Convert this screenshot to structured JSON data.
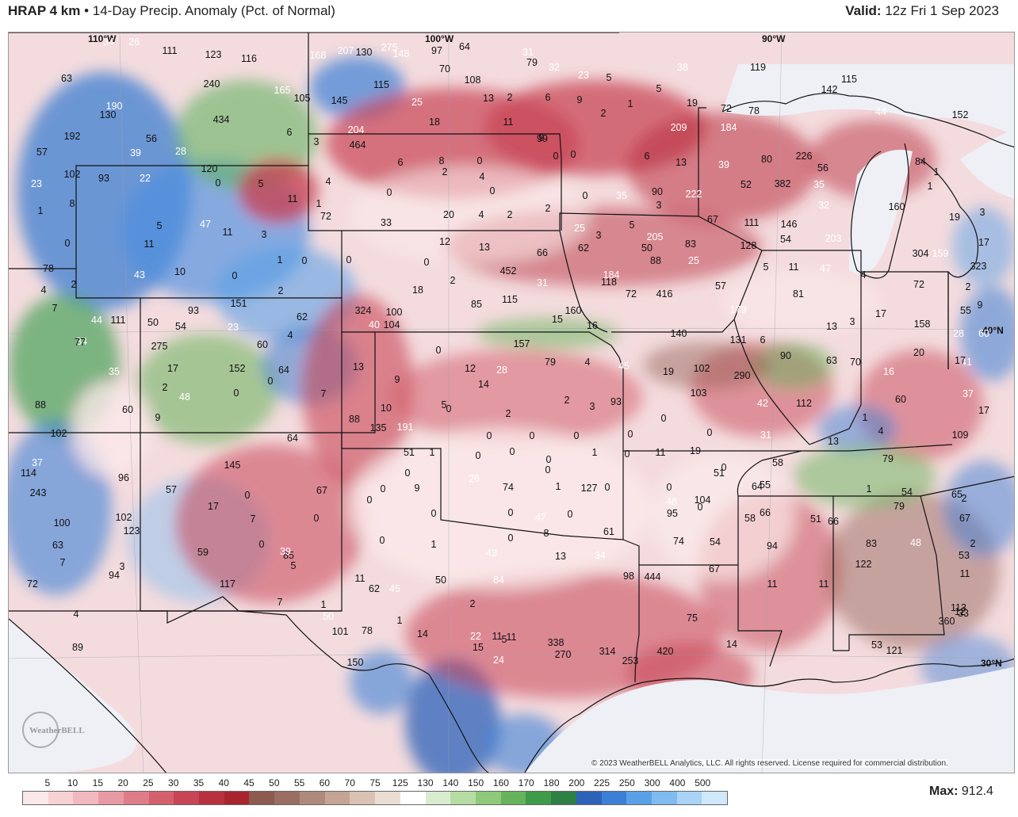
{
  "header": {
    "model": "HRAP 4 km",
    "bullet": "•",
    "product": "14-Day Precip. Anomaly (Pct. of Normal)",
    "valid_label": "Valid:",
    "valid_time": "12z Fri 1 Sep 2023"
  },
  "map": {
    "lon_labels": [
      "110°W",
      "100°W",
      "90°W"
    ],
    "lat_labels": [
      "40°N",
      "30°N"
    ],
    "logo_text": "WeatherBELL",
    "copyright": "© 2023 WeatherBELL Analytics, LLC. All rights reserved. License required for commercial distribution."
  },
  "station_values": [
    [
      "34",
      false
    ],
    [
      "26",
      false
    ],
    [
      "111",
      true
    ],
    [
      "123",
      true
    ],
    [
      "116",
      true
    ],
    [
      "168",
      false
    ],
    [
      "207",
      false
    ],
    [
      "130",
      true
    ],
    [
      "275",
      false
    ],
    [
      "148",
      false
    ],
    [
      "97",
      true
    ],
    [
      "64",
      true
    ],
    [
      "31",
      false
    ],
    [
      "63",
      true
    ],
    [
      "240",
      true
    ],
    [
      "165",
      false
    ],
    [
      "105",
      true
    ],
    [
      "145",
      true
    ],
    [
      "115",
      true
    ],
    [
      "70",
      true
    ],
    [
      "108",
      true
    ],
    [
      "79",
      true
    ],
    [
      "32",
      false
    ],
    [
      "23",
      false
    ],
    [
      "5",
      true
    ],
    [
      "38",
      false
    ],
    [
      "119",
      true
    ],
    [
      "115",
      true
    ],
    [
      "142",
      true
    ],
    [
      "190",
      false
    ],
    [
      "130",
      true
    ],
    [
      "434",
      true
    ],
    [
      "25",
      false
    ],
    [
      "13",
      true
    ],
    [
      "2",
      true
    ],
    [
      "6",
      true
    ],
    [
      "9",
      true
    ],
    [
      "2",
      true
    ],
    [
      "1",
      true
    ],
    [
      "5",
      true
    ],
    [
      "19",
      true
    ],
    [
      "72",
      true
    ],
    [
      "78",
      true
    ],
    [
      "44",
      false
    ],
    [
      "152",
      true
    ],
    [
      "192",
      true
    ],
    [
      "56",
      true
    ],
    [
      "6",
      true
    ],
    [
      "18",
      true
    ],
    [
      "11",
      true
    ],
    [
      "9",
      true
    ],
    [
      "209",
      false
    ],
    [
      "184",
      false
    ],
    [
      "57",
      true
    ],
    [
      "39",
      false
    ],
    [
      "28",
      false
    ],
    [
      "3",
      true
    ],
    [
      "464",
      true
    ],
    [
      "204",
      false
    ],
    [
      "99",
      true
    ],
    [
      "102",
      true
    ],
    [
      "93",
      true
    ],
    [
      "22",
      false
    ],
    [
      "120",
      true
    ],
    [
      "0",
      true
    ],
    [
      "5",
      true
    ],
    [
      "4",
      true
    ],
    [
      "6",
      true
    ],
    [
      "8",
      true
    ],
    [
      "2",
      true
    ],
    [
      "0",
      true
    ],
    [
      "4",
      true
    ],
    [
      "0",
      true
    ],
    [
      "0",
      true
    ],
    [
      "6",
      true
    ],
    [
      "13",
      true
    ],
    [
      "39",
      false
    ],
    [
      "52",
      true
    ],
    [
      "80",
      true
    ],
    [
      "382",
      true
    ],
    [
      "226",
      true
    ],
    [
      "56",
      true
    ],
    [
      "84",
      true
    ],
    [
      "1",
      true
    ],
    [
      "23",
      false
    ],
    [
      "8",
      true
    ],
    [
      "11",
      true
    ],
    [
      "1",
      true
    ],
    [
      "0",
      true
    ],
    [
      "0",
      true
    ],
    [
      "0",
      true
    ],
    [
      "35",
      false
    ],
    [
      "90",
      true
    ],
    [
      "222",
      false
    ],
    [
      "35",
      false
    ],
    [
      "32",
      false
    ],
    [
      "1",
      true
    ],
    [
      "1",
      true
    ],
    [
      "72",
      true
    ],
    [
      "20",
      true
    ],
    [
      "4",
      true
    ],
    [
      "2",
      true
    ],
    [
      "2",
      true
    ],
    [
      "3",
      true
    ],
    [
      "67",
      true
    ],
    [
      "111",
      true
    ],
    [
      "146",
      true
    ],
    [
      "160",
      true
    ],
    [
      "19",
      true
    ],
    [
      "3",
      true
    ],
    [
      "5",
      true
    ],
    [
      "47",
      false
    ],
    [
      "33",
      true
    ],
    [
      "25",
      false
    ],
    [
      "3",
      true
    ],
    [
      "5",
      true
    ],
    [
      "205",
      false
    ],
    [
      "83",
      true
    ],
    [
      "128",
      true
    ],
    [
      "54",
      true
    ],
    [
      "203",
      false
    ],
    [
      "17",
      true
    ],
    [
      "0",
      true
    ],
    [
      "11",
      true
    ],
    [
      "11",
      true
    ],
    [
      "3",
      true
    ],
    [
      "12",
      true
    ],
    [
      "13",
      true
    ],
    [
      "66",
      true
    ],
    [
      "62",
      true
    ],
    [
      "50",
      true
    ],
    [
      "25",
      false
    ],
    [
      "304",
      true
    ],
    [
      "159",
      false
    ],
    [
      "323",
      true
    ],
    [
      "78",
      true
    ],
    [
      "43",
      false
    ],
    [
      "10",
      true
    ],
    [
      "0",
      true
    ],
    [
      "1",
      true
    ],
    [
      "0",
      true
    ],
    [
      "0",
      true
    ],
    [
      "0",
      true
    ],
    [
      "452",
      true
    ],
    [
      "184",
      false
    ],
    [
      "88",
      true
    ],
    [
      "5",
      true
    ],
    [
      "11",
      true
    ],
    [
      "47",
      false
    ],
    [
      "4",
      true
    ],
    [
      "2",
      true
    ],
    [
      "4",
      true
    ],
    [
      "2",
      true
    ],
    [
      "18",
      true
    ],
    [
      "2",
      true
    ],
    [
      "31",
      false
    ],
    [
      "118",
      true
    ],
    [
      "72",
      true
    ],
    [
      "416",
      true
    ],
    [
      "57",
      true
    ],
    [
      "81",
      true
    ],
    [
      "72",
      true
    ],
    [
      "2",
      true
    ],
    [
      "7",
      true
    ],
    [
      "93",
      true
    ],
    [
      "151",
      true
    ],
    [
      "85",
      true
    ],
    [
      "115",
      true
    ],
    [
      "160",
      true
    ],
    [
      "179",
      false
    ],
    [
      "17",
      true
    ],
    [
      "9",
      true
    ],
    [
      "111",
      true
    ],
    [
      "50",
      true
    ],
    [
      "54",
      true
    ],
    [
      "23",
      false
    ],
    [
      "62",
      true
    ],
    [
      "324",
      true
    ],
    [
      "100",
      true
    ],
    [
      "15",
      true
    ],
    [
      "16",
      true
    ],
    [
      "55",
      true
    ],
    [
      "60",
      false
    ],
    [
      "44",
      false
    ],
    [
      "34",
      false
    ],
    [
      "4",
      true
    ],
    [
      "40",
      false
    ],
    [
      "104",
      true
    ],
    [
      "140",
      true
    ],
    [
      "131",
      true
    ],
    [
      "6",
      true
    ],
    [
      "13",
      true
    ],
    [
      "3",
      true
    ],
    [
      "158",
      true
    ],
    [
      "28",
      false
    ],
    [
      "41",
      false
    ],
    [
      "77",
      true
    ],
    [
      "275",
      true
    ],
    [
      "60",
      true
    ],
    [
      "157",
      true
    ],
    [
      "79",
      true
    ],
    [
      "4",
      true
    ],
    [
      "45",
      false
    ],
    [
      "90",
      true
    ],
    [
      "63",
      true
    ],
    [
      "20",
      true
    ],
    [
      "17",
      true
    ],
    [
      "35",
      false
    ],
    [
      "17",
      true
    ],
    [
      "152",
      true
    ],
    [
      "64",
      true
    ],
    [
      "13",
      true
    ],
    [
      "0",
      true
    ],
    [
      "12",
      true
    ],
    [
      "28",
      false
    ],
    [
      "19",
      true
    ],
    [
      "102",
      true
    ],
    [
      "290",
      true
    ],
    [
      "70",
      true
    ],
    [
      "16",
      false
    ],
    [
      "2",
      true
    ],
    [
      "0",
      true
    ],
    [
      "0",
      true
    ],
    [
      "9",
      true
    ],
    [
      "14",
      true
    ],
    [
      "103",
      true
    ],
    [
      "37",
      false
    ],
    [
      "88",
      true
    ],
    [
      "48",
      false
    ],
    [
      "7",
      true
    ],
    [
      "5",
      true
    ],
    [
      "2",
      true
    ],
    [
      "3",
      true
    ],
    [
      "93",
      true
    ],
    [
      "42",
      false
    ],
    [
      "112",
      true
    ],
    [
      "60",
      true
    ],
    [
      "60",
      true
    ],
    [
      "9",
      true
    ],
    [
      "10",
      true
    ],
    [
      "0",
      true
    ],
    [
      "2",
      true
    ],
    [
      "0",
      true
    ],
    [
      "1",
      true
    ],
    [
      "17",
      true
    ],
    [
      "102",
      true
    ],
    [
      "64",
      true
    ],
    [
      "88",
      true
    ],
    [
      "135",
      true
    ],
    [
      "191",
      false
    ],
    [
      "0",
      true
    ],
    [
      "0",
      true
    ],
    [
      "0",
      true
    ],
    [
      "0",
      true
    ],
    [
      "0",
      true
    ],
    [
      "31",
      false
    ],
    [
      "13",
      true
    ],
    [
      "4",
      true
    ],
    [
      "109",
      true
    ],
    [
      "37",
      false
    ],
    [
      "51",
      true
    ],
    [
      "1",
      true
    ],
    [
      "0",
      true
    ],
    [
      "0",
      true
    ],
    [
      "0",
      true
    ],
    [
      "1",
      true
    ],
    [
      "0",
      true
    ],
    [
      "11",
      true
    ],
    [
      "19",
      true
    ],
    [
      "51",
      true
    ],
    [
      "58",
      true
    ],
    [
      "79",
      true
    ],
    [
      "114",
      true
    ],
    [
      "96",
      true
    ],
    [
      "145",
      true
    ],
    [
      "0",
      true
    ],
    [
      "0",
      true
    ],
    [
      "0",
      true
    ],
    [
      "0",
      true
    ],
    [
      "0",
      true
    ],
    [
      "1",
      true
    ],
    [
      "54",
      true
    ],
    [
      "65",
      true
    ],
    [
      "243",
      true
    ],
    [
      "57",
      true
    ],
    [
      "67",
      true
    ],
    [
      "0",
      true
    ],
    [
      "9",
      true
    ],
    [
      "26",
      false
    ],
    [
      "74",
      true
    ],
    [
      "1",
      true
    ],
    [
      "127",
      true
    ],
    [
      "48",
      false
    ],
    [
      "104",
      true
    ],
    [
      "55",
      true
    ],
    [
      "79",
      true
    ],
    [
      "2",
      true
    ],
    [
      "0",
      true
    ],
    [
      "0",
      true
    ],
    [
      "0",
      true
    ],
    [
      "64",
      true
    ],
    [
      "66",
      true
    ],
    [
      "51",
      true
    ],
    [
      "100",
      true
    ],
    [
      "102",
      true
    ],
    [
      "17",
      true
    ],
    [
      "7",
      true
    ],
    [
      "0",
      true
    ],
    [
      "0",
      true
    ],
    [
      "0",
      true
    ],
    [
      "47",
      false
    ],
    [
      "0",
      true
    ],
    [
      "95",
      true
    ],
    [
      "58",
      true
    ],
    [
      "66",
      true
    ],
    [
      "67",
      true
    ],
    [
      "63",
      true
    ],
    [
      "123",
      true
    ],
    [
      "59",
      true
    ],
    [
      "85",
      true
    ],
    [
      "0",
      true
    ],
    [
      "1",
      true
    ],
    [
      "0",
      true
    ],
    [
      "8",
      true
    ],
    [
      "61",
      true
    ],
    [
      "74",
      true
    ],
    [
      "54",
      true
    ],
    [
      "94",
      true
    ],
    [
      "83",
      true
    ],
    [
      "48",
      false
    ],
    [
      "2",
      true
    ],
    [
      "7",
      true
    ],
    [
      "3",
      true
    ],
    [
      "0",
      true
    ],
    [
      "39",
      false
    ],
    [
      "5",
      true
    ],
    [
      "43",
      false
    ],
    [
      "13",
      true
    ],
    [
      "34",
      false
    ],
    [
      "67",
      true
    ],
    [
      "122",
      true
    ],
    [
      "53",
      true
    ],
    [
      "11",
      true
    ],
    [
      "12",
      true
    ],
    [
      "72",
      true
    ],
    [
      "94",
      true
    ],
    [
      "117",
      true
    ],
    [
      "7",
      true
    ],
    [
      "11",
      true
    ],
    [
      "62",
      true
    ],
    [
      "45",
      false
    ],
    [
      "50",
      true
    ],
    [
      "84",
      false
    ],
    [
      "98",
      true
    ],
    [
      "444",
      true
    ],
    [
      "11",
      true
    ],
    [
      "11",
      true
    ],
    [
      "4",
      true
    ],
    [
      "1",
      true
    ],
    [
      "50",
      false
    ],
    [
      "2",
      true
    ],
    [
      "22",
      false
    ],
    [
      "11",
      true
    ],
    [
      "5",
      true
    ],
    [
      "75",
      true
    ],
    [
      "33",
      true
    ],
    [
      "113",
      true
    ],
    [
      "101",
      true
    ],
    [
      "78",
      true
    ],
    [
      "1",
      true
    ],
    [
      "14",
      true
    ],
    [
      "11",
      true
    ],
    [
      "14",
      true
    ],
    [
      "53",
      true
    ],
    [
      "121",
      true
    ],
    [
      "360",
      true
    ],
    [
      "89",
      true
    ],
    [
      "150",
      true
    ],
    [
      "15",
      true
    ],
    [
      "24",
      false
    ],
    [
      "338",
      true
    ],
    [
      "270",
      true
    ],
    [
      "314",
      true
    ],
    [
      "253",
      true
    ],
    [
      "420",
      true
    ]
  ],
  "colorbar": {
    "labels": [
      "5",
      "10",
      "15",
      "20",
      "25",
      "30",
      "35",
      "40",
      "45",
      "50",
      "55",
      "60",
      "70",
      "75",
      "125",
      "130",
      "140",
      "150",
      "160",
      "170",
      "180",
      "200",
      "225",
      "250",
      "300",
      "400",
      "500"
    ],
    "colors": [
      "#fbe9ea",
      "#f6d2d5",
      "#f1b9bf",
      "#e89aa4",
      "#de7d89",
      "#d4606e",
      "#c84555",
      "#b9303f",
      "#a8252f",
      "#8d5a50",
      "#9a6e62",
      "#ae8a7c",
      "#c4a595",
      "#d9c2b3",
      "#eaded4",
      "#ffffff",
      "#d9ecd0",
      "#b6dca4",
      "#8fc97a",
      "#65b35a",
      "#3f9a4a",
      "#2d7f44",
      "#2e62b8",
      "#3c7fd6",
      "#5aa0e6",
      "#7fbbef",
      "#a9d4f6",
      "#cfe8fb"
    ]
  },
  "max": {
    "label": "Max:",
    "value": "912.4"
  }
}
